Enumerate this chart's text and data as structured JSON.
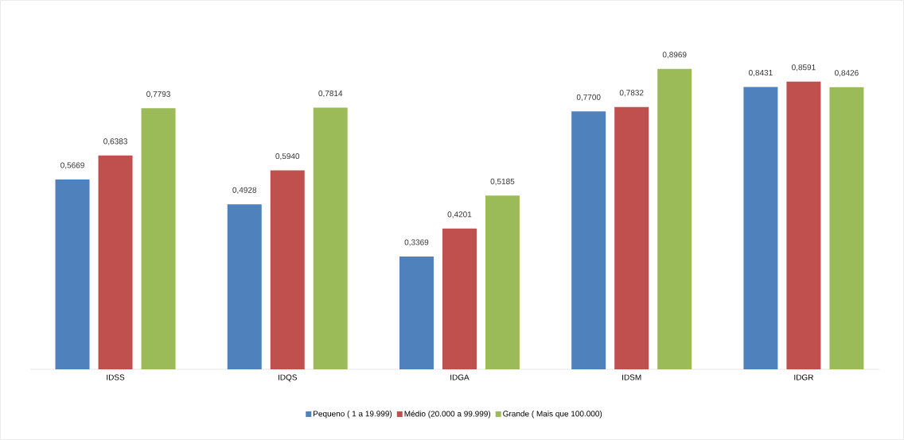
{
  "chart_data": {
    "type": "bar",
    "categories": [
      "IDSS",
      "IDQS",
      "IDGA",
      "IDSM",
      "IDGR"
    ],
    "series": [
      {
        "name": "Pequeno ( 1 a 19.999)",
        "color": "#4f81bd",
        "values": [
          0.5669,
          0.4928,
          0.3369,
          0.77,
          0.8431
        ],
        "value_labels": [
          "0,5669",
          "0,4928",
          "0,3369",
          "0,7700",
          "0,8431"
        ]
      },
      {
        "name": "Médio (20.000 a 99.999)",
        "color": "#c0504d",
        "values": [
          0.6383,
          0.594,
          0.4201,
          0.7832,
          0.8591
        ],
        "value_labels": [
          "0,6383",
          "0,5940",
          "0,4201",
          "0,7832",
          "0,8591"
        ]
      },
      {
        "name": "Grande ( Mais que 100.000)",
        "color": "#9bbb59",
        "values": [
          0.7793,
          0.7814,
          0.5185,
          0.8969,
          0.8426
        ],
        "value_labels": [
          "0,7793",
          "0,7814",
          "0,5185",
          "0,8969",
          "0,8426"
        ]
      }
    ],
    "legend": "bottom"
  }
}
